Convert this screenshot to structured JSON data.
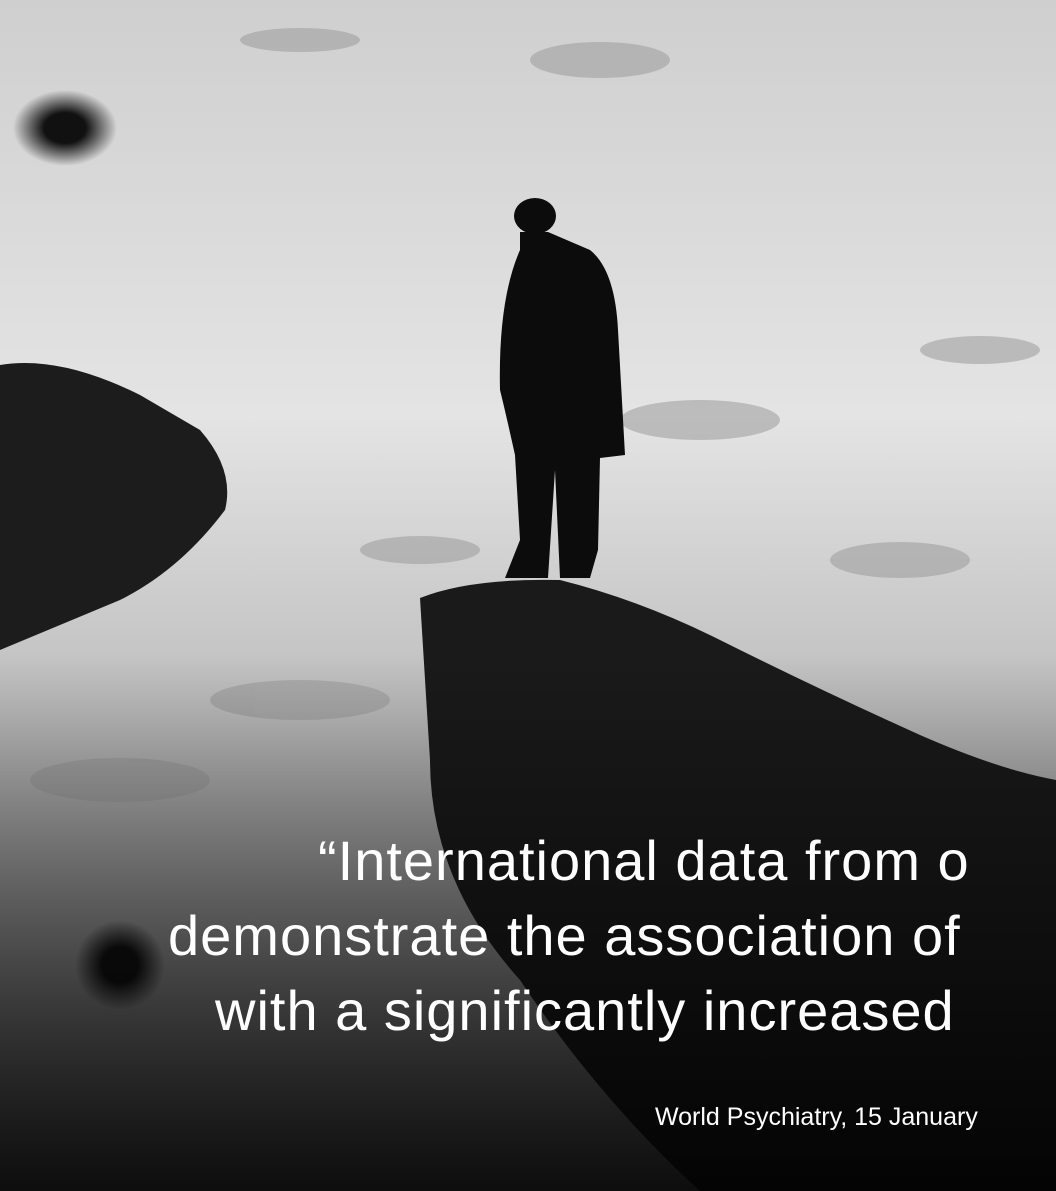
{
  "quote": {
    "lines": [
      "“International data from o",
      "demonstrate the association of",
      "with a significantly increased"
    ],
    "source": "World Psychiatry, 15 January"
  }
}
